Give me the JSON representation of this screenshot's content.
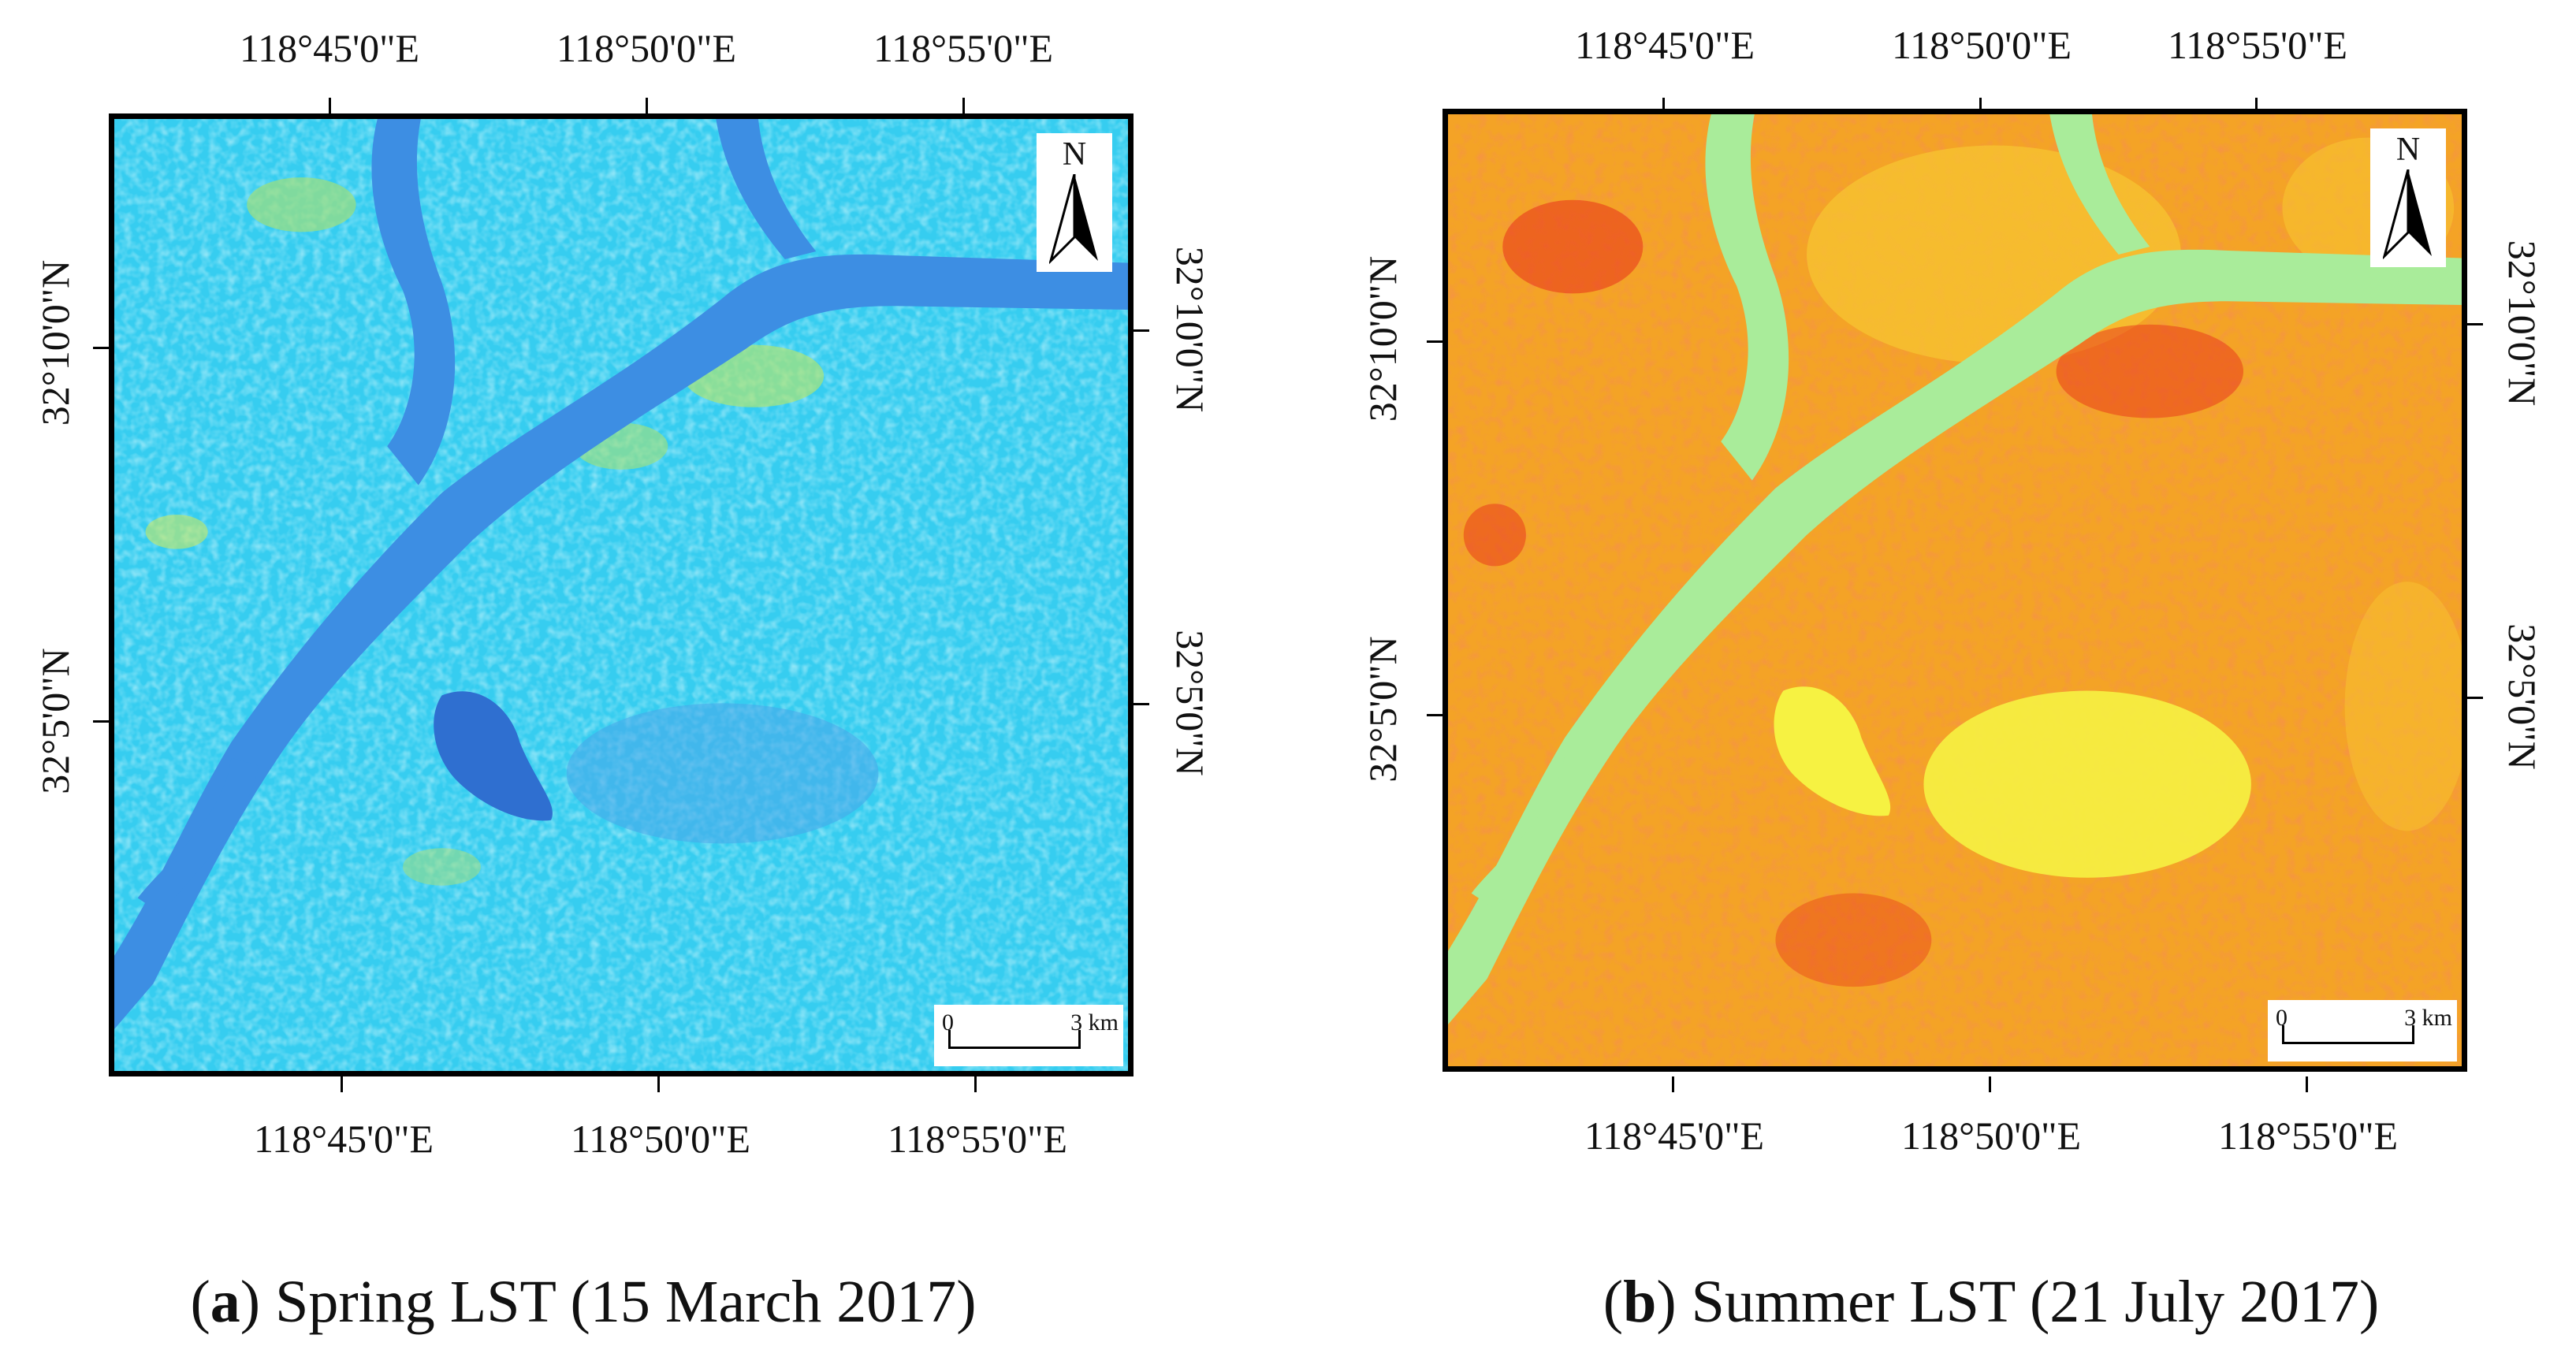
{
  "panels": [
    {
      "id": "a",
      "letter": "a",
      "caption_text": "Spring LST (15 March 2017)",
      "top_lon_labels": [
        "118°45'0\"E",
        "118°50'0\"E",
        "118°55'0\"E"
      ],
      "bottom_lon_labels": [
        "118°45'0\"E",
        "118°50'0\"E",
        "118°55'0\"E"
      ],
      "left_lat_labels": [
        "32°10'0\"N",
        "32°5'0\"N"
      ],
      "right_lat_labels": [
        "32°10'0\"N",
        "32°5'0\"N"
      ],
      "north_label": "N",
      "scale_zero": "0",
      "scale_max": "3 km",
      "colors": {
        "land": "#36cdf0",
        "land_light": "#5fe0f5",
        "warm_patch": "#c9ea62",
        "water": "#3d8ee3",
        "water_dark": "#2f6fd0"
      }
    },
    {
      "id": "b",
      "letter": "b",
      "caption_text": "Summer LST (21 July 2017)",
      "top_lon_labels": [
        "118°45'0\"E",
        "118°50'0\"E",
        "118°55'0\"E"
      ],
      "bottom_lon_labels": [
        "118°45'0\"E",
        "118°50'0\"E",
        "118°55'0\"E"
      ],
      "left_lat_labels": [
        "32°10'0\"N",
        "32°5'0\"N"
      ],
      "right_lat_labels": [
        "32°10'0\"N",
        "32°5'0\"N"
      ],
      "north_label": "N",
      "scale_zero": "0",
      "scale_max": "3 km",
      "colors": {
        "land": "#f4a326",
        "land_light": "#f7c431",
        "warm_patch": "#e8321a",
        "water": "#a9ec9a",
        "cool_patch": "#f6f242"
      }
    }
  ]
}
